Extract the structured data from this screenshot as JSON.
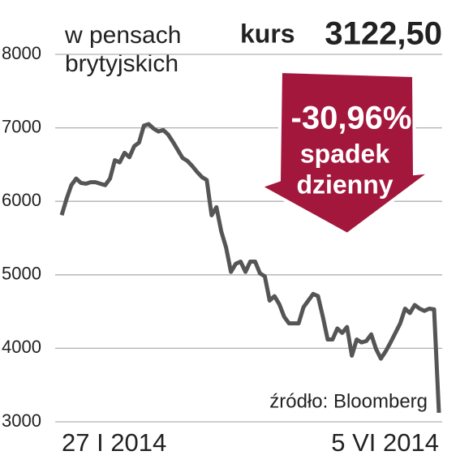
{
  "chart_data": {
    "type": "line",
    "subtitle": [
      "w pensach",
      "brytyjskich"
    ],
    "price_label": "kurs",
    "price": "3122,50",
    "change": "-30,96%",
    "change_text": [
      "spadek",
      "dzienny"
    ],
    "source": "źródło: Bloomberg",
    "categories": [
      "27 I 2014",
      null,
      null,
      null,
      null,
      null,
      null,
      null,
      null,
      null,
      null,
      null,
      null,
      null,
      null,
      null,
      null,
      null,
      null,
      null,
      null,
      null,
      null,
      null,
      null,
      null,
      null,
      null,
      null,
      null,
      null,
      null,
      null,
      null,
      null,
      null,
      null,
      null,
      null,
      null,
      null,
      null,
      null,
      null,
      null,
      null,
      null,
      null,
      null,
      null,
      null,
      null,
      null,
      null,
      null,
      null,
      null,
      null,
      null,
      null,
      null,
      null,
      null,
      null,
      null,
      null,
      null,
      null,
      null,
      null,
      null,
      null,
      null,
      null,
      null,
      null,
      null,
      null,
      "5 VI 2014"
    ],
    "series": [
      {
        "color": "#555555",
        "values": [
          5812,
          6030,
          6220,
          6310,
          6250,
          6240,
          6260,
          6260,
          6240,
          6220,
          6310,
          6560,
          6530,
          6660,
          6600,
          6750,
          6800,
          7030,
          7050,
          6990,
          6950,
          6970,
          6910,
          6810,
          6700,
          6590,
          6550,
          6480,
          6400,
          6330,
          6290,
          5810,
          5920,
          5590,
          5370,
          5040,
          5150,
          5180,
          5040,
          5180,
          5180,
          5020,
          4980,
          4650,
          4710,
          4600,
          4430,
          4340,
          4340,
          4340,
          4560,
          4650,
          4740,
          4710,
          4430,
          4120,
          4120,
          4270,
          4210,
          4290,
          3900,
          4120,
          4080,
          4100,
          4190,
          3990,
          3860,
          3960,
          4080,
          4210,
          4340,
          4540,
          4480,
          4590,
          4540,
          4510,
          4540,
          4530,
          3122.5
        ]
      }
    ],
    "ylim": [
      3000,
      8000
    ],
    "yticks": [
      3000,
      4000,
      5000,
      6000,
      7000,
      8000
    ],
    "grid": true
  }
}
